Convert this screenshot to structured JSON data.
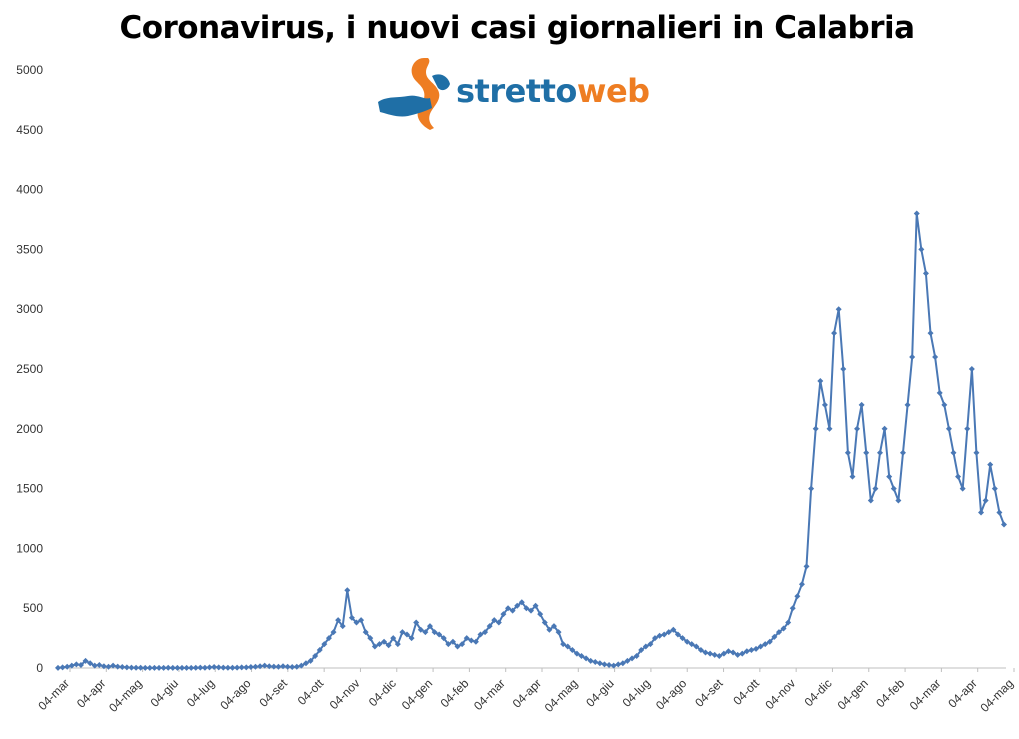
{
  "chart_data": {
    "type": "line",
    "title": "Coronavirus, i nuovi casi giornalieri in Calabria",
    "logo": "strettoweb",
    "ylim": [
      0,
      5000
    ],
    "yticks": [
      0,
      500,
      1000,
      1500,
      2000,
      2500,
      3000,
      3500,
      4000,
      4500,
      5000
    ],
    "xticks": [
      "04-mar",
      "04-apr",
      "04-mag",
      "04-giu",
      "04-lug",
      "04-ago",
      "04-set",
      "04-ott",
      "04-nov",
      "04-dic",
      "04-gen",
      "04-feb",
      "04-mar",
      "04-apr",
      "04-mag",
      "04-giu",
      "04-lug",
      "04-ago",
      "04-set",
      "04-ott",
      "04-nov",
      "04-dic",
      "04-gen",
      "04-feb",
      "04-mar",
      "04-apr",
      "04-mag"
    ],
    "grid": false,
    "legend": "none",
    "series_color": "#4a78b5",
    "days_per_point": 3,
    "series": [
      {
        "values": [
          1,
          5,
          10,
          20,
          30,
          25,
          60,
          40,
          20,
          25,
          15,
          10,
          20,
          12,
          8,
          5,
          3,
          2,
          2,
          1,
          1,
          1,
          1,
          1,
          2,
          1,
          1,
          1,
          1,
          1,
          2,
          3,
          2,
          5,
          8,
          5,
          3,
          2,
          2,
          3,
          5,
          5,
          8,
          10,
          15,
          20,
          15,
          12,
          10,
          15,
          10,
          8,
          10,
          20,
          40,
          60,
          100,
          150,
          200,
          250,
          300,
          400,
          350,
          650,
          420,
          380,
          400,
          300,
          250,
          180,
          200,
          220,
          190,
          250,
          200,
          300,
          280,
          250,
          380,
          320,
          300,
          350,
          300,
          280,
          250,
          200,
          220,
          180,
          200,
          250,
          230,
          220,
          280,
          300,
          350,
          400,
          380,
          450,
          500,
          480,
          520,
          550,
          500,
          480,
          520,
          450,
          380,
          320,
          350,
          300,
          200,
          180,
          150,
          120,
          100,
          80,
          60,
          50,
          40,
          30,
          25,
          20,
          30,
          40,
          60,
          80,
          100,
          150,
          180,
          200,
          250,
          270,
          280,
          300,
          320,
          280,
          250,
          220,
          200,
          180,
          150,
          130,
          120,
          110,
          100,
          120,
          140,
          130,
          110,
          120,
          140,
          150,
          160,
          180,
          200,
          220,
          260,
          300,
          330,
          380,
          500,
          600,
          700,
          850,
          1500,
          2000,
          2400,
          2200,
          2000,
          2800,
          3000,
          2500,
          1800,
          1600,
          2000,
          2200,
          1800,
          1400,
          1500,
          1800,
          2000,
          1600,
          1500,
          1400,
          1800,
          2200,
          2600,
          3800,
          3500,
          3300,
          2800,
          2600,
          2300,
          2200,
          2000,
          1800,
          1600,
          1500,
          2000,
          2500,
          1800,
          1300,
          1400,
          1700,
          1500,
          1300,
          1200
        ]
      }
    ]
  }
}
